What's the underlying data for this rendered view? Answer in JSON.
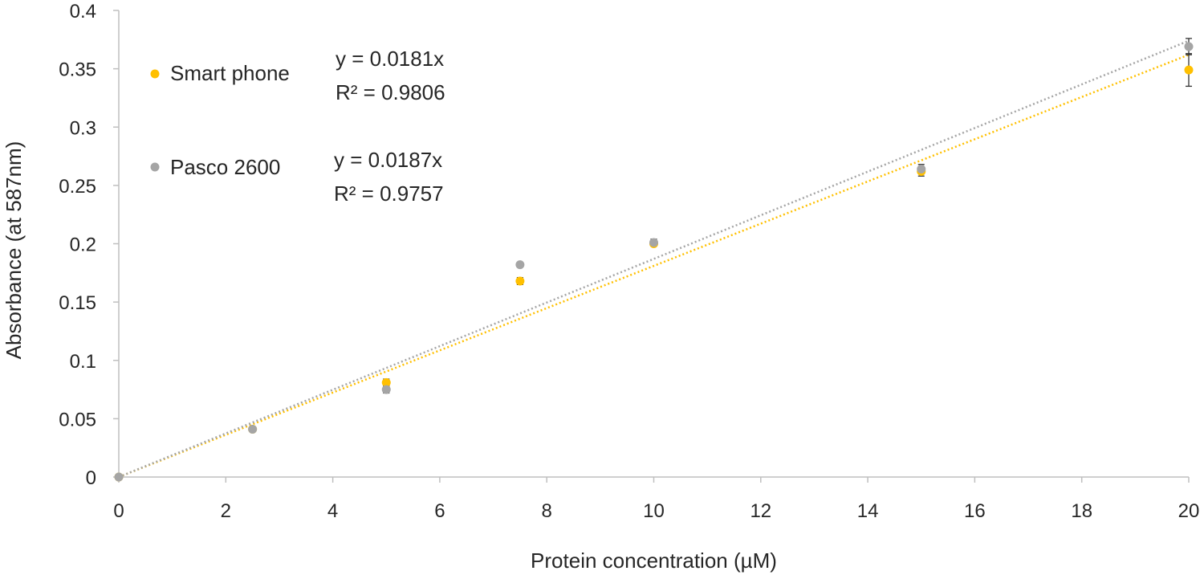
{
  "chart_data": {
    "type": "scatter",
    "xlabel": "Protein concentration (µM)",
    "ylabel": "Absorbance (at 587nm)",
    "xlim": [
      0,
      20
    ],
    "ylim": [
      0,
      0.4
    ],
    "xticks": [
      0,
      2,
      4,
      6,
      8,
      10,
      12,
      14,
      16,
      18,
      20
    ],
    "yticks": [
      0,
      0.05,
      0.1,
      0.15,
      0.2,
      0.25,
      0.3,
      0.35,
      0.4
    ],
    "xtick_labels": [
      "0",
      "2",
      "4",
      "6",
      "8",
      "10",
      "12",
      "14",
      "16",
      "18",
      "20"
    ],
    "ytick_labels": [
      "0",
      "0.05",
      "0.1",
      "0.15",
      "0.2",
      "0.25",
      "0.3",
      "0.35",
      "0.4"
    ],
    "grid": false,
    "legend_position": "top-left",
    "series": [
      {
        "name": "Smart phone",
        "color": "#FFC000",
        "x": [
          0,
          2.5,
          5,
          7.5,
          10,
          15,
          20
        ],
        "y": [
          0,
          0.041,
          0.081,
          0.168,
          0.2,
          0.262,
          0.349
        ],
        "error": [
          0,
          0.001,
          0.003,
          0.003,
          0.002,
          0.004,
          0.014
        ],
        "trendline": {
          "slope": 0.0181,
          "equation": "y = 0.0181x",
          "r_squared": "R² = 0.9806"
        }
      },
      {
        "name": "Pasco 2600",
        "color": "#A5A5A5",
        "x": [
          0,
          2.5,
          5,
          7.5,
          10,
          15,
          20
        ],
        "y": [
          0,
          0.041,
          0.075,
          0.182,
          0.201,
          0.264,
          0.369
        ],
        "error": [
          0,
          0.001,
          0.003,
          0.002,
          0.003,
          0.004,
          0.007
        ],
        "trendline": {
          "slope": 0.0187,
          "equation": "y = 0.0187x",
          "r_squared": "R² = 0.9757"
        }
      }
    ]
  }
}
